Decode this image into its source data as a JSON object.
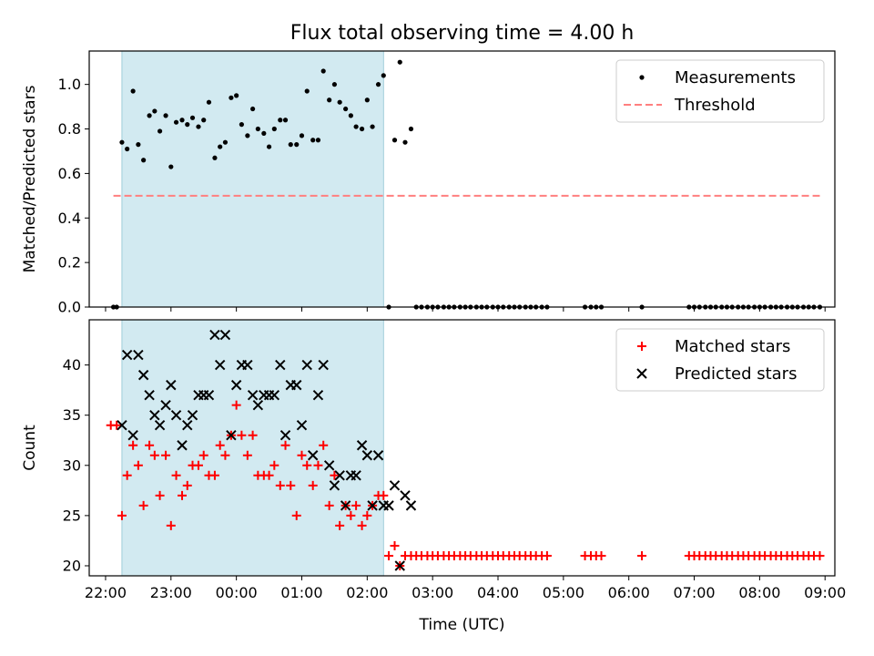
{
  "chart_data": [
    {
      "type": "scatter",
      "title": "Flux total observing time = 4.00 h",
      "xlabel": "",
      "ylabel": "Matched/Predicted stars",
      "xlim_hours": [
        21.75,
        33.15
      ],
      "ylim": [
        0,
        1.15
      ],
      "yticks": [
        0.0,
        0.2,
        0.4,
        0.6,
        0.8,
        1.0
      ],
      "ytick_labels": [
        "0.0",
        "0.2",
        "0.4",
        "0.6",
        "0.8",
        "1.0"
      ],
      "shaded_span_hours": [
        22.25,
        26.25
      ],
      "legend_position": "top-right",
      "series": [
        {
          "name": "Measurements",
          "style": "dot",
          "color": "#000000",
          "x": [
            22.12,
            22.17,
            22.25,
            22.33,
            22.42,
            22.5,
            22.58,
            22.67,
            22.75,
            22.83,
            22.92,
            23.0,
            23.08,
            23.17,
            23.25,
            23.33,
            23.42,
            23.5,
            23.58,
            23.67,
            23.75,
            23.83,
            23.92,
            24.0,
            24.08,
            24.17,
            24.25,
            24.33,
            24.42,
            24.5,
            24.58,
            24.67,
            24.75,
            24.83,
            24.92,
            25.0,
            25.08,
            25.17,
            25.25,
            25.33,
            25.42,
            25.5,
            25.58,
            25.67,
            25.75,
            25.83,
            25.92,
            26.0,
            26.08,
            26.17,
            26.25,
            26.33,
            26.42,
            26.5,
            26.58,
            26.67,
            26.75,
            26.83,
            26.92,
            27.0,
            27.08,
            27.17,
            27.25,
            27.33,
            27.42,
            27.5,
            27.58,
            27.67,
            27.75,
            27.83,
            27.92,
            28.0,
            28.08,
            28.17,
            28.25,
            28.33,
            28.42,
            28.5,
            28.58,
            28.67,
            28.75,
            29.33,
            29.42,
            29.5,
            29.58,
            30.2,
            30.92,
            31.0,
            31.08,
            31.17,
            31.25,
            31.33,
            31.42,
            31.5,
            31.58,
            31.67,
            31.75,
            31.83,
            31.92,
            32.0,
            32.08,
            32.17,
            32.25,
            32.33,
            32.42,
            32.5,
            32.58,
            32.67,
            32.75,
            32.83,
            32.92
          ],
          "y": [
            0,
            0,
            0.74,
            0.71,
            0.97,
            0.73,
            0.66,
            0.86,
            0.88,
            0.79,
            0.86,
            0.63,
            0.83,
            0.84,
            0.82,
            0.85,
            0.81,
            0.84,
            0.92,
            0.67,
            0.72,
            0.74,
            0.94,
            0.95,
            0.82,
            0.77,
            0.89,
            0.8,
            0.78,
            0.72,
            0.8,
            0.84,
            0.84,
            0.73,
            0.73,
            0.77,
            0.97,
            0.75,
            0.75,
            1.06,
            0.93,
            1.0,
            0.92,
            0.89,
            0.86,
            0.81,
            0.8,
            0.93,
            0.81,
            1.0,
            1.04,
            0,
            0.75,
            1.1,
            0.74,
            0.8,
            0,
            0,
            0,
            0,
            0,
            0,
            0,
            0,
            0,
            0,
            0,
            0,
            0,
            0,
            0,
            0,
            0,
            0,
            0,
            0,
            0,
            0,
            0,
            0,
            0,
            0,
            0,
            0,
            0,
            0,
            0,
            0,
            0,
            0,
            0,
            0,
            0,
            0,
            0,
            0,
            0,
            0,
            0,
            0,
            0,
            0,
            0,
            0,
            0,
            0,
            0,
            0,
            0,
            0,
            0
          ]
        },
        {
          "name": "Threshold",
          "style": "dashed-line",
          "color": "#ff7f7f",
          "x": [
            22.12,
            32.92
          ],
          "y": [
            0.5,
            0.5
          ]
        }
      ]
    },
    {
      "type": "scatter",
      "title": "",
      "xlabel": "Time (UTC)",
      "ylabel": "Count",
      "xlim_hours": [
        21.75,
        33.15
      ],
      "ylim": [
        19,
        44.5
      ],
      "yticks": [
        20,
        25,
        30,
        35,
        40
      ],
      "ytick_labels": [
        "20",
        "25",
        "30",
        "35",
        "40"
      ],
      "xticks_hours": [
        22,
        23,
        24,
        25,
        26,
        27,
        28,
        29,
        30,
        31,
        32,
        33
      ],
      "xtick_labels": [
        "22:00",
        "23:00",
        "00:00",
        "01:00",
        "02:00",
        "03:00",
        "04:00",
        "05:00",
        "06:00",
        "07:00",
        "08:00",
        "09:00"
      ],
      "shaded_span_hours": [
        22.25,
        26.25
      ],
      "legend_position": "top-right",
      "series": [
        {
          "name": "Matched stars",
          "marker": "plus",
          "color": "#ff0000",
          "x": [
            22.08,
            22.17,
            22.25,
            22.33,
            22.42,
            22.5,
            22.58,
            22.67,
            22.75,
            22.83,
            22.92,
            23.0,
            23.08,
            23.17,
            23.25,
            23.33,
            23.42,
            23.5,
            23.58,
            23.67,
            23.75,
            23.83,
            23.92,
            24.0,
            24.08,
            24.17,
            24.25,
            24.33,
            24.42,
            24.5,
            24.58,
            24.67,
            24.75,
            24.83,
            24.92,
            25.0,
            25.08,
            25.17,
            25.25,
            25.33,
            25.42,
            25.5,
            25.58,
            25.67,
            25.75,
            25.83,
            25.92,
            26.0,
            26.08,
            26.17,
            26.25,
            26.33,
            26.42,
            26.5,
            26.58,
            26.67,
            26.75,
            26.83,
            26.92,
            27.0,
            27.08,
            27.17,
            27.25,
            27.33,
            27.42,
            27.5,
            27.58,
            27.67,
            27.75,
            27.83,
            27.92,
            28.0,
            28.08,
            28.17,
            28.25,
            28.33,
            28.42,
            28.5,
            28.58,
            28.67,
            28.75,
            29.33,
            29.42,
            29.5,
            29.58,
            30.2,
            30.92,
            31.0,
            31.08,
            31.17,
            31.25,
            31.33,
            31.42,
            31.5,
            31.58,
            31.67,
            31.75,
            31.83,
            31.92,
            32.0,
            32.08,
            32.17,
            32.25,
            32.33,
            32.42,
            32.5,
            32.58,
            32.67,
            32.75,
            32.83,
            32.92
          ],
          "y": [
            34,
            34,
            25,
            29,
            32,
            30,
            26,
            32,
            31,
            27,
            31,
            24,
            29,
            27,
            28,
            30,
            30,
            31,
            29,
            29,
            32,
            31,
            33,
            36,
            33,
            31,
            33,
            29,
            29,
            29,
            30,
            28,
            32,
            28,
            25,
            31,
            30,
            28,
            30,
            32,
            26,
            29,
            24,
            26,
            25,
            26,
            24,
            25,
            26,
            27,
            27,
            21,
            22,
            20,
            21,
            21,
            21,
            21,
            21,
            21,
            21,
            21,
            21,
            21,
            21,
            21,
            21,
            21,
            21,
            21,
            21,
            21,
            21,
            21,
            21,
            21,
            21,
            21,
            21,
            21,
            21,
            21,
            21,
            21,
            21,
            21,
            21,
            21,
            21,
            21,
            21,
            21,
            21,
            21,
            21,
            21,
            21,
            21,
            21,
            21,
            21,
            21,
            21,
            21,
            21,
            21,
            21,
            21,
            21,
            21,
            21
          ]
        },
        {
          "name": "Predicted stars",
          "marker": "x",
          "color": "#000000",
          "x": [
            22.25,
            22.33,
            22.42,
            22.5,
            22.58,
            22.67,
            22.75,
            22.83,
            22.92,
            23.0,
            23.08,
            23.17,
            23.25,
            23.33,
            23.42,
            23.5,
            23.58,
            23.67,
            23.75,
            23.83,
            23.92,
            24.0,
            24.08,
            24.17,
            24.25,
            24.33,
            24.42,
            24.5,
            24.58,
            24.67,
            24.75,
            24.83,
            24.92,
            25.0,
            25.08,
            25.17,
            25.25,
            25.33,
            25.42,
            25.5,
            25.58,
            25.67,
            25.75,
            25.83,
            25.92,
            26.0,
            26.08,
            26.17,
            26.25,
            26.33,
            26.42,
            26.5,
            26.58,
            26.67
          ],
          "y": [
            34,
            41,
            33,
            41,
            39,
            37,
            35,
            34,
            36,
            38,
            35,
            32,
            34,
            35,
            37,
            37,
            37,
            43,
            40,
            43,
            33,
            38,
            40,
            40,
            37,
            36,
            37,
            37,
            37,
            40,
            33,
            38,
            38,
            34,
            40,
            31,
            37,
            40,
            30,
            28,
            29,
            26,
            29,
            29,
            32,
            31,
            26,
            31,
            26,
            26,
            28,
            20,
            27,
            26
          ]
        }
      ]
    }
  ]
}
